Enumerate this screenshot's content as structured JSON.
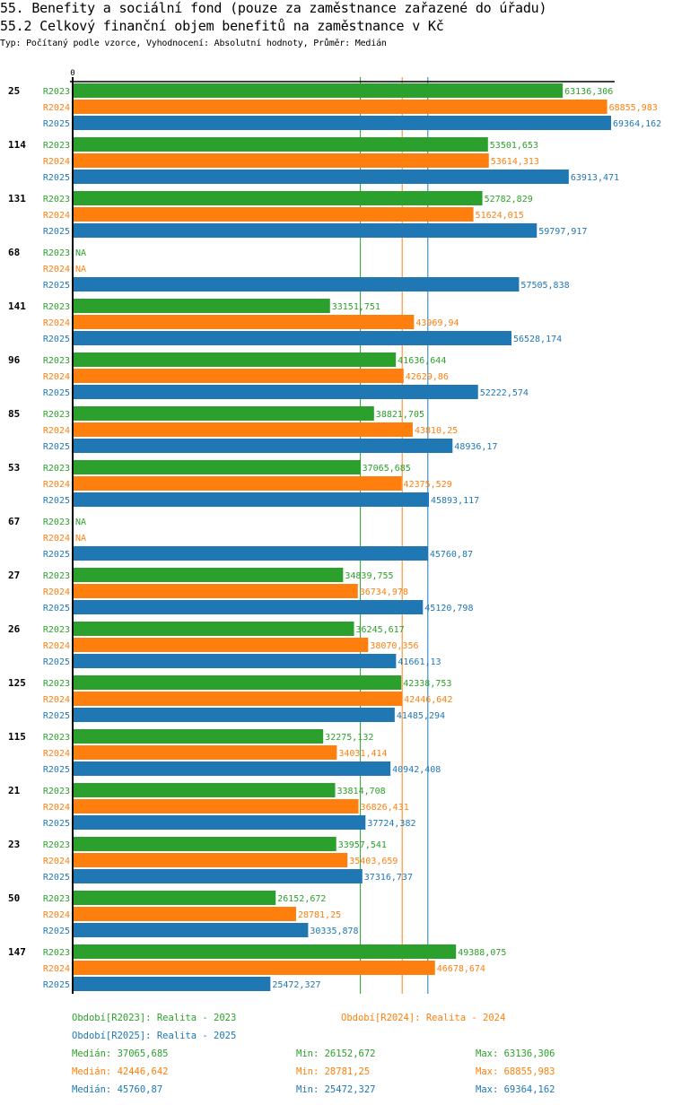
{
  "header": {
    "title": "55. Benefity a sociální fond (pouze za zaměstnance zařazené do úřadu)",
    "subtitle": "55.2 Celkový finanční objem benefitů na zaměstnance v Kč",
    "meta": "Typ: Počítaný podle vzorce, Vyhodnocení: Absolutní hodnoty, Průměr: Medián"
  },
  "colors": {
    "R2023": "#2ca02c",
    "R2024": "#ff7f0e",
    "R2025": "#1f77b4"
  },
  "chart_data": {
    "type": "bar",
    "orientation": "horizontal",
    "title": "55.2 Celkový finanční objem benefitů na zaměstnance v Kč",
    "xlabel": "",
    "ylabel": "",
    "xlim": [
      0,
      69364.162
    ],
    "x_tick_labels": [
      "0"
    ],
    "grid": false,
    "categories": [
      "25",
      "114",
      "131",
      "68",
      "141",
      "96",
      "85",
      "53",
      "67",
      "27",
      "26",
      "125",
      "115",
      "21",
      "23",
      "50",
      "147"
    ],
    "series": [
      {
        "name": "R2023",
        "values": [
          63136.306,
          53501.653,
          52782.829,
          null,
          33151.751,
          41636.644,
          38821.705,
          37065.685,
          null,
          34839.755,
          36245.617,
          42338.753,
          32275.132,
          33814.708,
          33957.541,
          26152.672,
          49388.075
        ],
        "labels": [
          "63136,306",
          "53501,653",
          "52782,829",
          "NA",
          "33151,751",
          "41636,644",
          "38821,705",
          "37065,685",
          "NA",
          "34839,755",
          "36245,617",
          "42338,753",
          "32275,132",
          "33814,708",
          "33957,541",
          "26152,672",
          "49388,075"
        ]
      },
      {
        "name": "R2024",
        "values": [
          68855.983,
          53614.313,
          51624.015,
          null,
          43969.94,
          42629.86,
          43810.25,
          42375.529,
          null,
          36734.978,
          38070.356,
          42446.642,
          34031.414,
          36826.431,
          35403.659,
          28781.25,
          46678.674
        ],
        "labels": [
          "68855,983",
          "53614,313",
          "51624,015",
          "NA",
          "43969,94",
          "42629,86",
          "43810,25",
          "42375,529",
          "NA",
          "36734,978",
          "38070,356",
          "42446,642",
          "34031,414",
          "36826,431",
          "35403,659",
          "28781,25",
          "46678,674"
        ]
      },
      {
        "name": "R2025",
        "values": [
          69364.162,
          63913.471,
          59797.917,
          57505.838,
          56528.174,
          52222.574,
          48936.17,
          45893.117,
          45760.87,
          45120.798,
          41661.13,
          41485.294,
          40942.408,
          37724.382,
          37316.737,
          30335.878,
          25472.327
        ],
        "labels": [
          "69364,162",
          "63913,471",
          "59797,917",
          "57505,838",
          "56528,174",
          "52222,574",
          "48936,17",
          "45893,117",
          "45760,87",
          "45120,798",
          "41661,13",
          "41485,294",
          "40942,408",
          "37724,382",
          "37316,737",
          "30335,878",
          "25472,327"
        ]
      }
    ],
    "medians": {
      "R2023": 37065.685,
      "R2024": 42446.642,
      "R2025": 45760.87
    },
    "legend": [
      {
        "series": "R2023",
        "text": "Období[R2023]: Realita - 2023"
      },
      {
        "series": "R2024",
        "text": "Období[R2024]: Realita - 2024"
      },
      {
        "series": "R2025",
        "text": "Období[R2025]: Realita - 2025"
      }
    ],
    "legend_position": "bottom",
    "stats": [
      {
        "series": "R2023",
        "median": "Medián: 37065,685",
        "min": "Min: 26152,672",
        "max": "Max: 63136,306"
      },
      {
        "series": "R2024",
        "median": "Medián: 42446,642",
        "min": "Min: 28781,25",
        "max": "Max: 68855,983"
      },
      {
        "series": "R2025",
        "median": "Medián: 45760,87",
        "min": "Min: 25472,327",
        "max": "Max: 69364,162"
      }
    ]
  }
}
